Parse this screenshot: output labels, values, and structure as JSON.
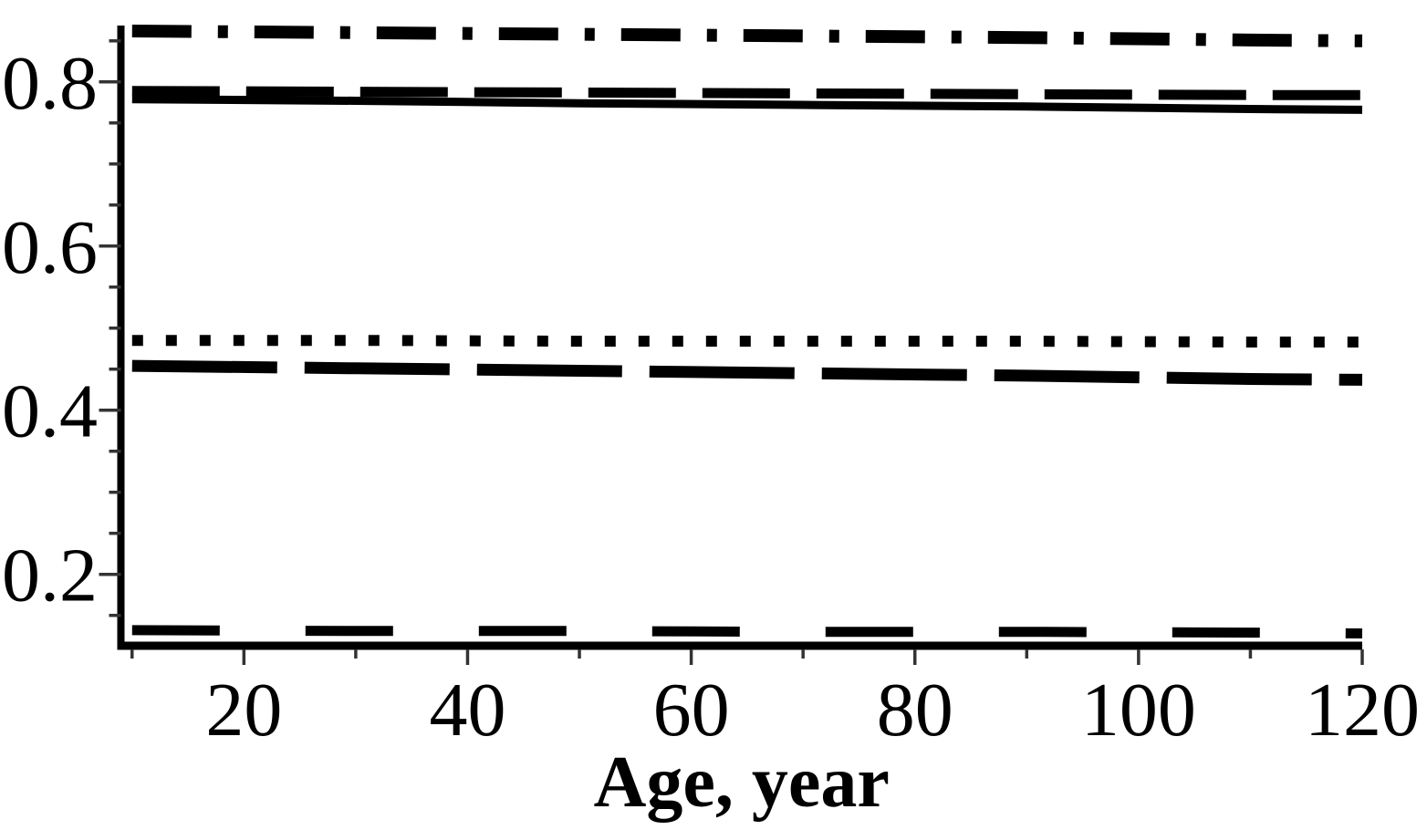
{
  "chart_data": {
    "type": "line",
    "title": "",
    "xlabel": "Age, year",
    "ylabel": "",
    "xlim": [
      9,
      120
    ],
    "ylim": [
      0.113,
      0.872
    ],
    "grid": false,
    "legend": "none",
    "line_color": "#000000",
    "axis_color": "#000000",
    "tick_color": "#333333",
    "background_color": "#ffffff",
    "x_major_ticks": [
      20,
      40,
      60,
      80,
      100,
      120
    ],
    "x_tick_labels": [
      "20",
      "40",
      "60",
      "80",
      "100",
      "120"
    ],
    "x_minor_ticks": [
      10,
      30,
      50,
      70,
      90,
      110
    ],
    "y_major_ticks": [
      0.2,
      0.4,
      0.6,
      0.8
    ],
    "y_tick_labels": [
      "0.2",
      "0.4",
      "0.6",
      "0.8"
    ],
    "y_minor_ticks": [
      0.15,
      0.25,
      0.3,
      0.35,
      0.45,
      0.5,
      0.55,
      0.65,
      0.7,
      0.75,
      0.85
    ],
    "x": [
      10,
      30,
      50,
      70,
      90,
      110,
      120
    ],
    "series": [
      {
        "name": "curve-dash-dot",
        "linestyle": "dash-dot",
        "values": [
          0.862,
          0.86,
          0.858,
          0.856,
          0.854,
          0.851,
          0.85
        ]
      },
      {
        "name": "curve-long-dash",
        "linestyle": "long-dash",
        "values": [
          0.789,
          0.788,
          0.787,
          0.786,
          0.785,
          0.784,
          0.784
        ]
      },
      {
        "name": "curve-solid",
        "linestyle": "solid",
        "values": [
          0.779,
          0.777,
          0.774,
          0.772,
          0.77,
          0.767,
          0.766
        ]
      },
      {
        "name": "curve-dotted",
        "linestyle": "dotted",
        "values": [
          0.485,
          0.485,
          0.484,
          0.484,
          0.484,
          0.483,
          0.483
        ]
      },
      {
        "name": "curve-medium-dash",
        "linestyle": "medium-dash",
        "values": [
          0.454,
          0.451,
          0.448,
          0.445,
          0.442,
          0.438,
          0.437
        ]
      },
      {
        "name": "curve-spaced-dash",
        "linestyle": "spaced-long-dash",
        "values": [
          0.132,
          0.131,
          0.131,
          0.13,
          0.13,
          0.129,
          0.128
        ]
      }
    ]
  }
}
